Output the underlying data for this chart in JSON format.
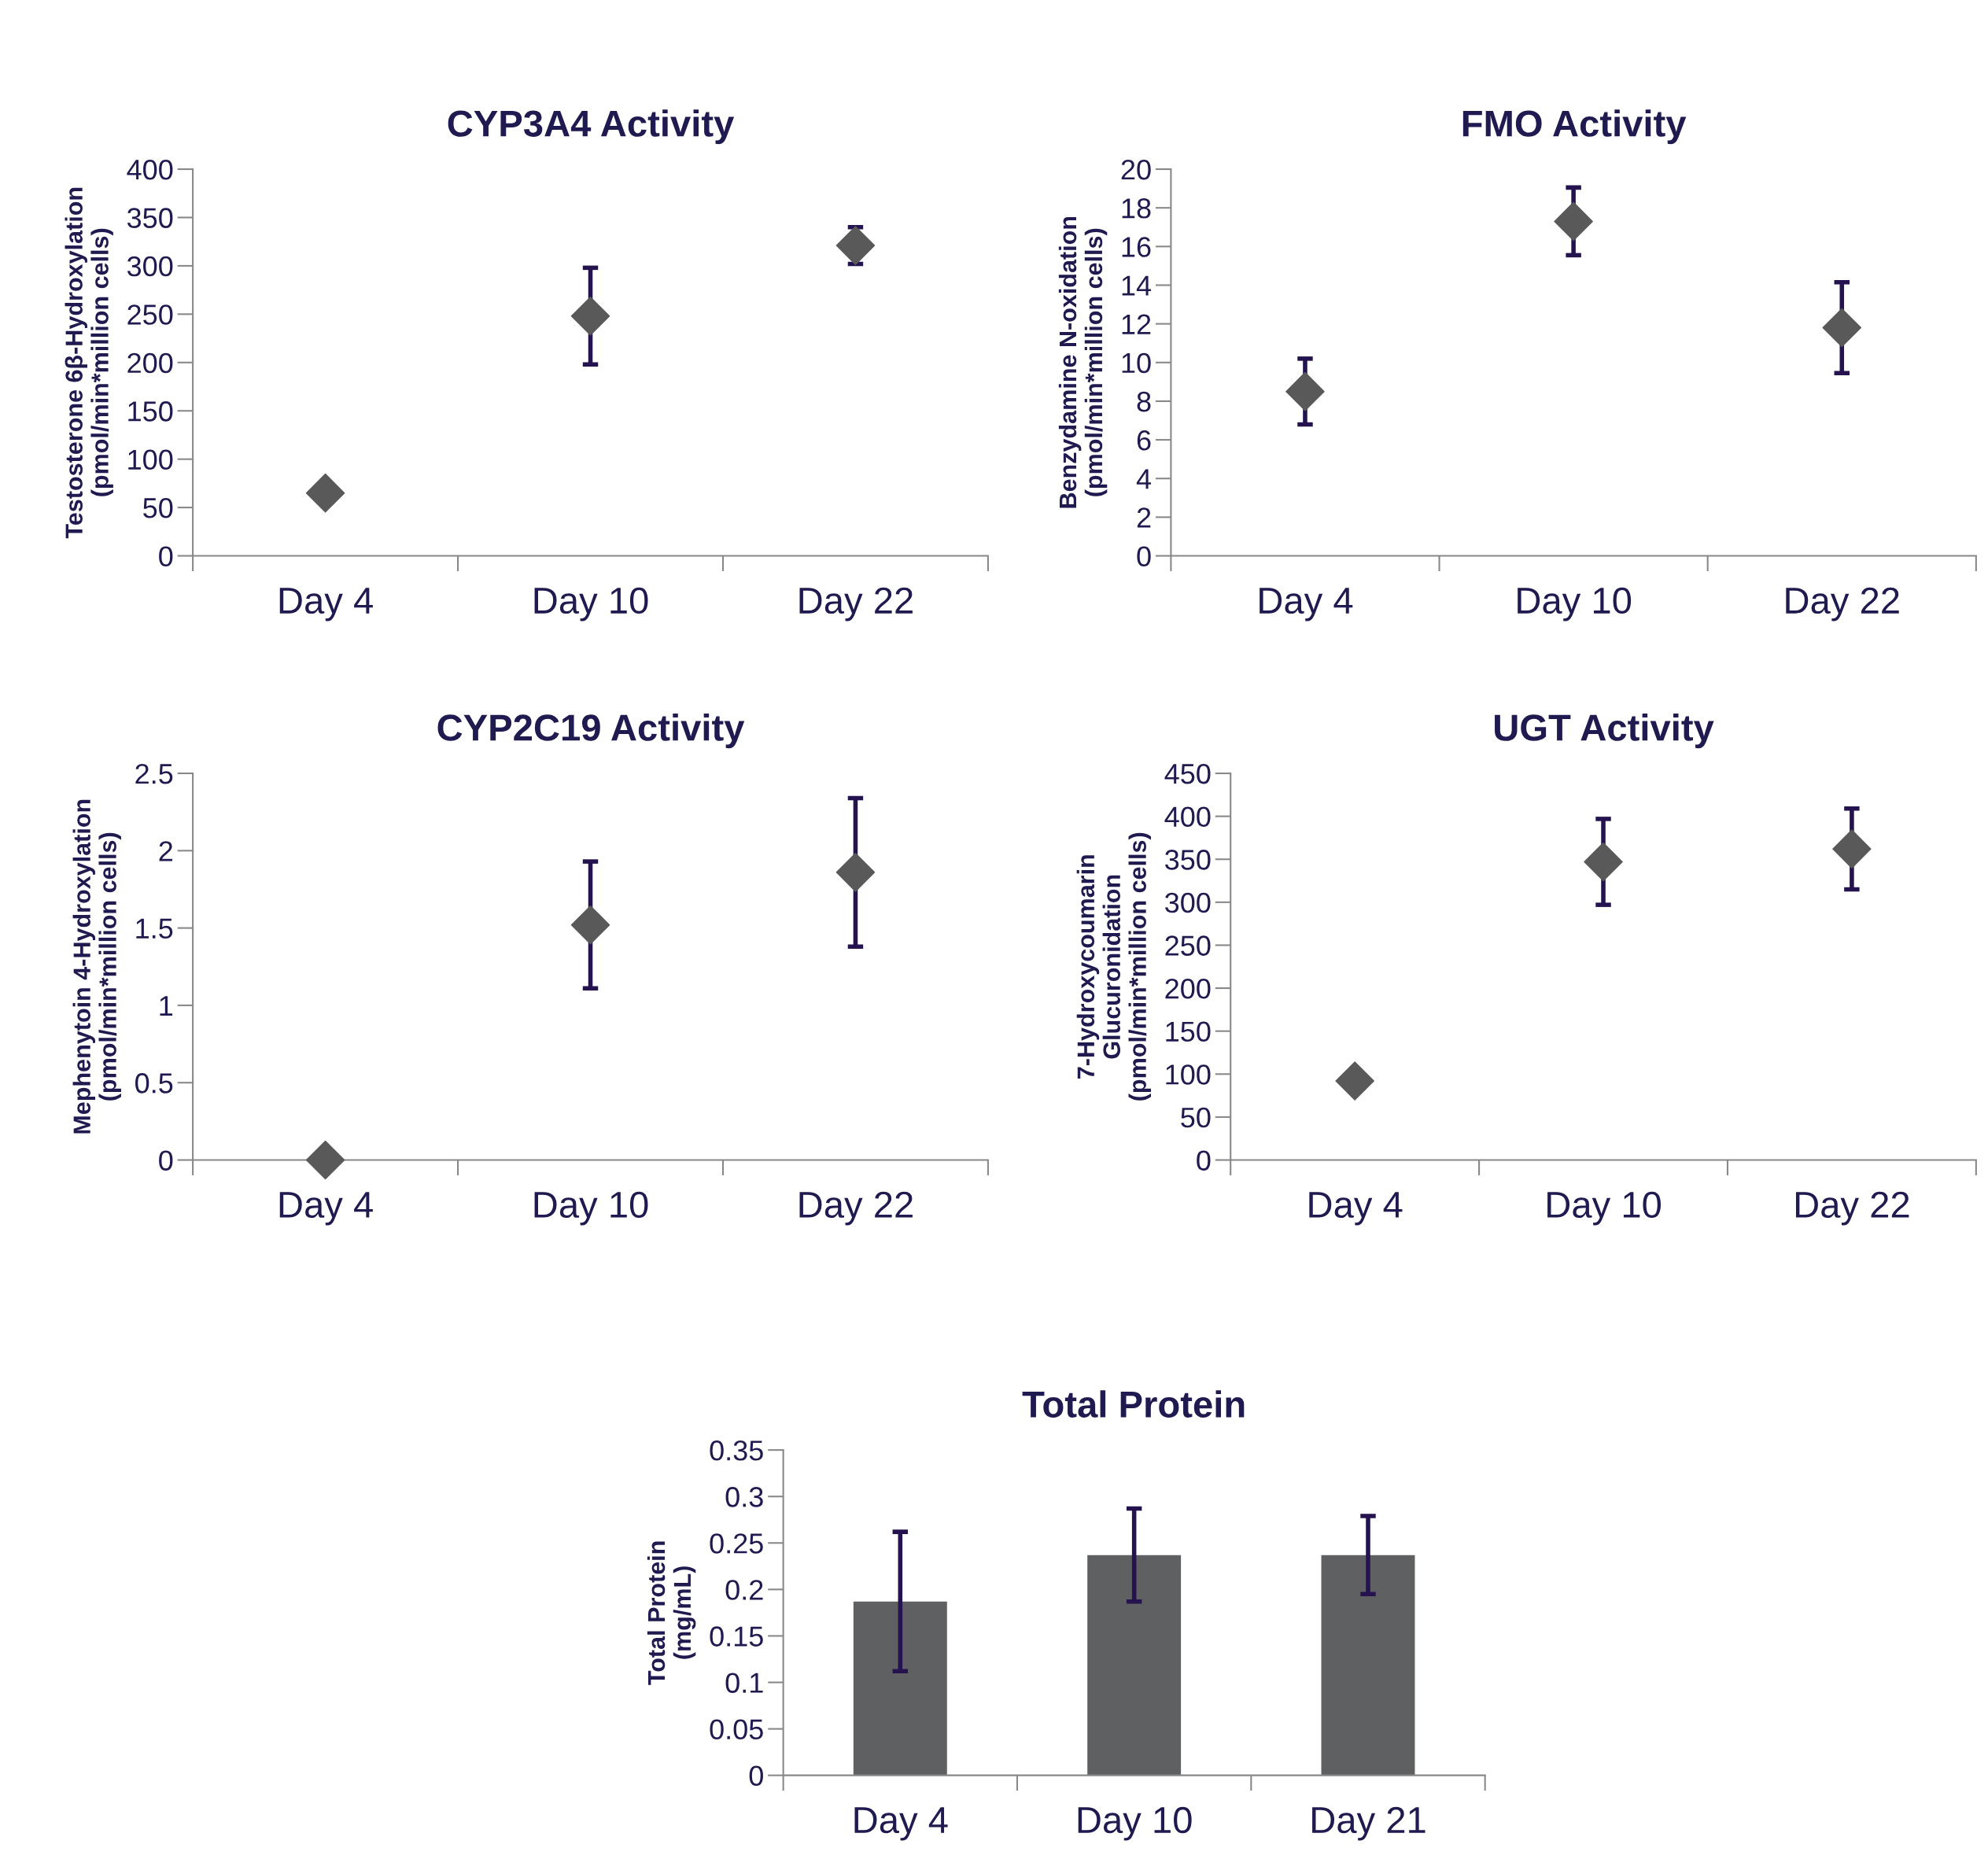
{
  "chart_data": [
    {
      "type": "scatter",
      "title": "CYP3A4 Activity",
      "ylabel": "Testosterone 6β-Hydroxylation\n(pmol/min*million cells)",
      "categories": [
        "Day 4",
        "Day 10",
        "Day 22"
      ],
      "values": [
        65,
        248,
        321
      ],
      "errors": [
        null,
        50,
        19
      ],
      "color": "#595959",
      "marker": "diamond",
      "ylim": [
        0,
        400
      ],
      "yticks": [
        0,
        50,
        100,
        150,
        200,
        250,
        300,
        350,
        400
      ]
    },
    {
      "type": "scatter",
      "title": "FMO Activity",
      "ylabel": "Benzydamine N-oxidation\n(pmol/min*million cells)",
      "categories": [
        "Day 4",
        "Day 10",
        "Day 22"
      ],
      "values": [
        8.5,
        17.3,
        11.8
      ],
      "errors": [
        1.7,
        1.75,
        2.35
      ],
      "color": "#595959",
      "marker": "diamond",
      "ylim": [
        0,
        20
      ],
      "yticks": [
        0,
        2,
        4,
        6,
        8,
        10,
        12,
        14,
        16,
        18,
        20
      ]
    },
    {
      "type": "scatter",
      "title": "CYP2C19 Activity",
      "ylabel": "Mephenytoin 4-Hydroxylation\n(pmol/min*million cells)",
      "categories": [
        "Day 4",
        "Day 10",
        "Day 22"
      ],
      "values": [
        0,
        1.52,
        1.86
      ],
      "errors": [
        null,
        0.41,
        0.48
      ],
      "color": "#595959",
      "marker": "diamond",
      "ylim": [
        0,
        2.5
      ],
      "yticks": [
        0,
        0.5,
        1,
        1.5,
        2,
        2.5
      ]
    },
    {
      "type": "scatter",
      "title": "UGT Activity",
      "ylabel": "7-Hydroxycoumarin\nGlucuronidation\n(pmol/min*million cells)",
      "categories": [
        "Day 4",
        "Day 10",
        "Day 22"
      ],
      "values": [
        92,
        347,
        362
      ],
      "errors": [
        null,
        50,
        47
      ],
      "color": "#595959",
      "marker": "diamond",
      "ylim": [
        0,
        450
      ],
      "yticks": [
        0,
        50,
        100,
        150,
        200,
        250,
        300,
        350,
        400,
        450
      ]
    },
    {
      "type": "bar",
      "title": "Total Protein",
      "ylabel": "Total Protein\n(mg/mL)",
      "categories": [
        "Day 4",
        "Day 10",
        "Day 21"
      ],
      "values": [
        0.187,
        0.237,
        0.237
      ],
      "errors": [
        0.075,
        0.05,
        0.042
      ],
      "color": "#5f6062",
      "ylim": [
        0,
        0.35
      ],
      "yticks": [
        0,
        0.05,
        0.1,
        0.15,
        0.2,
        0.25,
        0.3,
        0.35
      ]
    }
  ]
}
